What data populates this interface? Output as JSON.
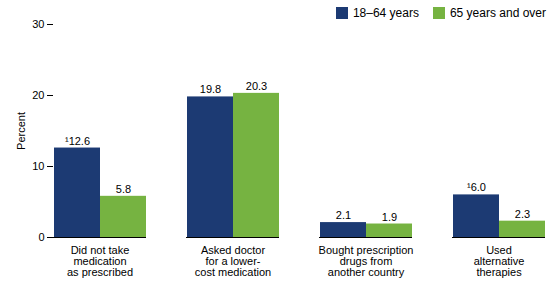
{
  "chart_data": {
    "type": "bar",
    "categories": [
      "Did not take\nmedication\nas prescribed",
      "Asked doctor\nfor a lower-\ncost medication",
      "Bought prescription\ndrugs from\nanother country",
      "Used\nalternative\ntherapies"
    ],
    "series": [
      {
        "name": "18–64 years",
        "color": "#1c3a73",
        "values": [
          12.6,
          19.8,
          2.1,
          6.0
        ],
        "value_labels": [
          "¹12.6",
          "19.8",
          "2.1",
          "¹6.0"
        ]
      },
      {
        "name": "65 years and over",
        "color": "#76b341",
        "values": [
          5.8,
          20.3,
          1.9,
          2.3
        ],
        "value_labels": [
          "5.8",
          "20.3",
          "1.9",
          "2.3"
        ]
      }
    ],
    "y_label": "Percent",
    "ylim": [
      0,
      30
    ],
    "yticks": [
      0,
      10,
      20,
      30
    ],
    "grid": false,
    "legend": "top-right",
    "data_labels": true
  }
}
